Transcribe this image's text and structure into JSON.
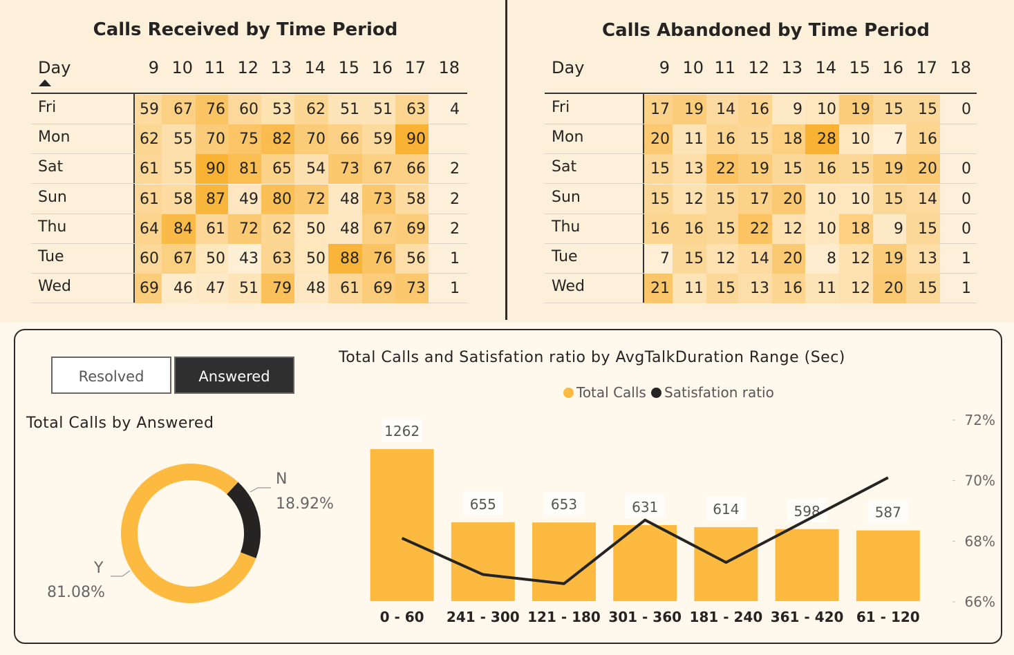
{
  "received": {
    "title": "Calls Received by Time Period",
    "day_header": "Day",
    "hours": [
      "9",
      "10",
      "11",
      "12",
      "13",
      "14",
      "15",
      "16",
      "17",
      "18"
    ],
    "rows": [
      {
        "day": "Fri",
        "values": [
          59,
          67,
          76,
          60,
          53,
          62,
          51,
          51,
          63,
          4
        ]
      },
      {
        "day": "Mon",
        "values": [
          62,
          55,
          70,
          75,
          82,
          70,
          66,
          59,
          90,
          null
        ]
      },
      {
        "day": "Sat",
        "values": [
          61,
          55,
          90,
          81,
          65,
          54,
          73,
          67,
          66,
          2
        ]
      },
      {
        "day": "Sun",
        "values": [
          61,
          58,
          87,
          49,
          80,
          72,
          48,
          73,
          58,
          2
        ]
      },
      {
        "day": "Thu",
        "values": [
          64,
          84,
          61,
          72,
          62,
          50,
          48,
          67,
          69,
          2
        ]
      },
      {
        "day": "Tue",
        "values": [
          60,
          67,
          50,
          43,
          63,
          50,
          88,
          76,
          56,
          1
        ]
      },
      {
        "day": "Wed",
        "values": [
          69,
          46,
          47,
          51,
          79,
          48,
          61,
          69,
          73,
          1
        ]
      }
    ]
  },
  "abandoned": {
    "title": "Calls Abandoned by Time Period",
    "day_header": "Day",
    "hours": [
      "9",
      "10",
      "11",
      "12",
      "13",
      "14",
      "15",
      "16",
      "17",
      "18"
    ],
    "rows": [
      {
        "day": "Fri",
        "values": [
          17,
          19,
          14,
          16,
          9,
          10,
          19,
          15,
          15,
          0
        ]
      },
      {
        "day": "Mon",
        "values": [
          20,
          11,
          16,
          15,
          18,
          28,
          10,
          7,
          16,
          null
        ]
      },
      {
        "day": "Sat",
        "values": [
          15,
          13,
          22,
          19,
          15,
          16,
          15,
          19,
          20,
          0
        ]
      },
      {
        "day": "Sun",
        "values": [
          15,
          12,
          15,
          17,
          20,
          10,
          10,
          15,
          14,
          0
        ]
      },
      {
        "day": "Thu",
        "values": [
          16,
          16,
          15,
          22,
          12,
          10,
          18,
          9,
          15,
          0
        ]
      },
      {
        "day": "Tue",
        "values": [
          7,
          15,
          12,
          14,
          20,
          8,
          12,
          19,
          13,
          1
        ]
      },
      {
        "day": "Wed",
        "values": [
          21,
          11,
          15,
          13,
          16,
          11,
          12,
          20,
          15,
          1
        ]
      }
    ]
  },
  "slicer": {
    "resolved_label": "Resolved",
    "answered_label": "Answered",
    "selected": "Answered"
  },
  "donut": {
    "title": "Total Calls by Answered",
    "slices": [
      {
        "label": "Y",
        "percent_label": "81.08%",
        "fraction": 0.8108,
        "color": "#FDBA40"
      },
      {
        "label": "N",
        "percent_label": "18.92%",
        "fraction": 0.1892,
        "color": "#252423"
      }
    ]
  },
  "chart_data": {
    "type": "bar",
    "title": "Total Calls and Satisfation ratio by AvgTalkDuration Range (Sec)",
    "categories": [
      "0 - 60",
      "241 - 300",
      "121 - 180",
      "301 - 360",
      "181 - 240",
      "361 - 420",
      "61 - 120"
    ],
    "series": [
      {
        "name": "Total Calls",
        "type": "bar",
        "color": "#FDBA40",
        "values": [
          1262,
          655,
          653,
          631,
          614,
          598,
          587
        ]
      },
      {
        "name": "Satisfation ratio",
        "type": "line",
        "color": "#252423",
        "values": [
          68.1,
          66.9,
          66.6,
          68.7,
          67.3,
          68.7,
          70.1
        ]
      }
    ],
    "y2_ticks": [
      "72%",
      "70%",
      "68%",
      "66%"
    ],
    "y2lim": [
      65.6,
      72.0
    ],
    "legend_position": "top"
  },
  "colors": {
    "heat_high": "#F9B233",
    "heat_low": "#FFFFFF",
    "accent": "#FDBA40",
    "dark": "#252423"
  }
}
